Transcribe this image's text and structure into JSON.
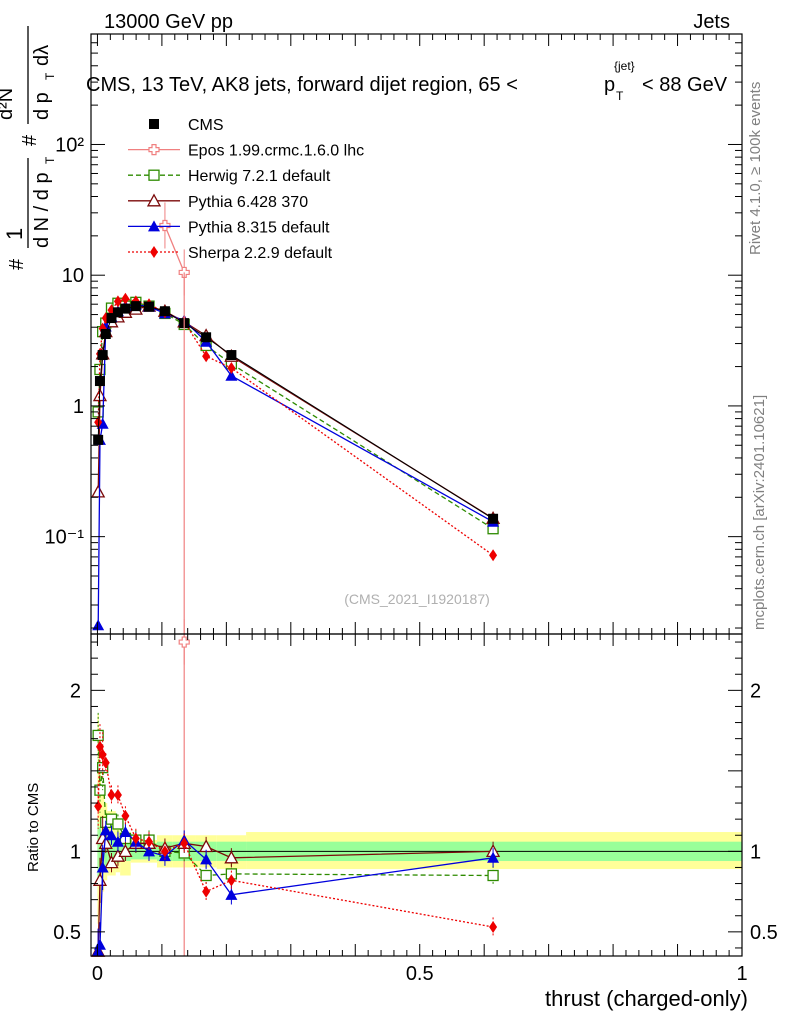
{
  "header": {
    "energy_label": "13000 GeV pp",
    "category": "Jets"
  },
  "side_texts": {
    "rivet": "Rivet 4.1.0, ≥ 100k events",
    "mcplots": "mcplots.cern.ch [arXiv:2401.10621]"
  },
  "colors": {
    "cms": "#000000",
    "epos": "#f08080",
    "herwig": "#2e8b00",
    "pythia6": "#7b0a0a",
    "pythia8": "#0000dd",
    "sherpa": "#ee0000",
    "band_outer": "#ffff99",
    "band_inner": "#99ff99"
  },
  "chart_data": [
    {
      "type": "line",
      "title": "CMS, 13 TeV, AK8 jets, forward dijet region, 65 < p_T^{jet} < 88 GeV",
      "title_main": "CMS, 13 TeV, AK8 jets, forward dijet region, 65 <",
      "title_p": "p",
      "title_sub": "T",
      "title_sup": "{jet}",
      "title_end": "< 88 GeV",
      "ylabel": "1/dN/dpT  d²N/dpT dλ",
      "ylabel_parts": {
        "hash": "#",
        "one": "1",
        "dn_dpt": "d N / d p",
        "t": "T",
        "d2n": "d²N",
        "dpt_dl": "d p",
        "dl": "dλ"
      },
      "yscale": "log",
      "ylim": [
        0.018,
        700
      ],
      "xlim": [
        -0.01,
        1.0
      ],
      "y_ticks": [
        {
          "value": 0.1,
          "label": "10⁻¹"
        },
        {
          "value": 1,
          "label": "1"
        },
        {
          "value": 10,
          "label": "10"
        },
        {
          "value": 100,
          "label": "10²"
        }
      ],
      "watermark": "(CMS_2021_I1920187)",
      "legend_position": "top-left",
      "x": [
        0.0011,
        0.0039,
        0.0081,
        0.0129,
        0.0218,
        0.0318,
        0.0434,
        0.0596,
        0.08,
        0.1047,
        0.1346,
        0.1686,
        0.2078,
        0.6138
      ],
      "series": [
        {
          "name": "CMS",
          "key": "cms",
          "marker": "square-filled",
          "dash": "none",
          "values": [
            0.55,
            1.55,
            2.45,
            3.55,
            4.7,
            5.2,
            5.55,
            5.8,
            5.75,
            5.3,
            4.3,
            3.35,
            2.45,
            0.137
          ]
        },
        {
          "name": "Epos 1.99.crmc.1.6.0 lhc",
          "key": "epos",
          "marker": "cross-open",
          "dash": "none",
          "x": [
            0.1047,
            0.1346
          ],
          "values": [
            24,
            10.5
          ]
        },
        {
          "name": "Herwig 7.2.1 default",
          "key": "herwig",
          "marker": "square-open",
          "dash": "5,3",
          "values": [
            0.9,
            1.9,
            3.7,
            4.3,
            5.6,
            6.1,
            5.8,
            6.2,
            5.8,
            5.1,
            4.2,
            2.9,
            2.1,
            0.115
          ]
        },
        {
          "name": "Pythia 6.428 370",
          "key": "pythia6",
          "marker": "triangle-open",
          "dash": "none",
          "values": [
            0.22,
            1.2,
            2.5,
            3.7,
            4.4,
            4.8,
            5.2,
            5.5,
            5.8,
            5.3,
            4.4,
            3.45,
            2.4,
            0.138
          ]
        },
        {
          "name": "Pythia 8.315 default",
          "key": "pythia8",
          "marker": "triangle-filled",
          "dash": "none",
          "values": [
            0.021,
            0.55,
            0.73,
            4.05,
            4.8,
            5.3,
            5.8,
            5.95,
            5.75,
            5.1,
            4.5,
            3.1,
            1.7,
            0.13
          ]
        },
        {
          "name": "Sherpa 2.2.9 default",
          "key": "sherpa",
          "marker": "diamond-filled",
          "dash": "2,2",
          "values": [
            0.75,
            2.5,
            3.9,
            4.7,
            5.4,
            6.3,
            6.6,
            6.3,
            6.0,
            5.2,
            4.4,
            2.4,
            1.95,
            0.072
          ]
        }
      ],
      "x_edges": [
        0.0,
        0.0022,
        0.0056,
        0.0106,
        0.0152,
        0.0284,
        0.0352,
        0.0516,
        0.0676,
        0.0924,
        0.117,
        0.1522,
        0.185,
        0.2306,
        1.0
      ]
    },
    {
      "type": "line",
      "title": "Ratio to CMS",
      "ylabel": "Ratio to CMS",
      "xlabel": "thrust (charged-only)",
      "ylim": [
        0.35,
        2.35
      ],
      "xlim": [
        -0.01,
        1.0
      ],
      "x_ticks": [
        {
          "value": 0,
          "label": "0"
        },
        {
          "value": 0.5,
          "label": "0.5"
        },
        {
          "value": 1,
          "label": "1"
        }
      ],
      "y_ticks": [
        {
          "value": 0.5,
          "label": "0.5"
        },
        {
          "value": 1,
          "label": "1"
        },
        {
          "value": 2,
          "label": "2"
        }
      ],
      "band_edges": [
        0.0,
        0.0022,
        0.0056,
        0.0106,
        0.0152,
        0.0284,
        0.0352,
        0.0516,
        0.0676,
        0.0924,
        0.117,
        0.1522,
        0.185,
        0.2306,
        1.0
      ],
      "band_outer": [
        [
          0.55,
          1.85
        ],
        [
          0.6,
          1.5
        ],
        [
          0.75,
          1.4
        ],
        [
          0.82,
          1.3
        ],
        [
          0.85,
          1.25
        ],
        [
          0.87,
          1.2
        ],
        [
          0.85,
          1.12
        ],
        [
          0.93,
          1.08
        ],
        [
          0.93,
          1.07
        ],
        [
          0.9,
          1.1
        ],
        [
          0.9,
          1.1
        ],
        [
          0.9,
          1.1
        ],
        [
          0.89,
          1.1
        ],
        [
          0.89,
          1.12
        ]
      ],
      "band_inner": [
        [
          0.82,
          1.2
        ],
        [
          0.85,
          1.15
        ],
        [
          0.9,
          1.12
        ],
        [
          0.9,
          1.1
        ],
        [
          0.92,
          1.09
        ],
        [
          0.93,
          1.08
        ],
        [
          0.94,
          1.07
        ],
        [
          0.95,
          1.05
        ],
        [
          0.95,
          1.05
        ],
        [
          0.94,
          1.06
        ],
        [
          0.94,
          1.06
        ],
        [
          0.94,
          1.06
        ],
        [
          0.94,
          1.06
        ],
        [
          0.94,
          1.06
        ]
      ],
      "x": [
        0.0011,
        0.0039,
        0.0081,
        0.0129,
        0.0218,
        0.0318,
        0.0434,
        0.0596,
        0.08,
        0.1047,
        0.1346,
        0.1686,
        0.2078,
        0.6138
      ],
      "series": [
        {
          "name": "Epos 1.99.crmc.1.6.0 lhc",
          "key": "epos",
          "x": [
            0.1346
          ],
          "values": [
            2.3
          ]
        },
        {
          "name": "Herwig 7.2.1 default",
          "key": "herwig",
          "values": [
            1.72,
            1.38,
            1.52,
            1.18,
            1.2,
            1.17,
            1.08,
            1.07,
            1.07,
            1.0,
            0.99,
            0.85,
            0.86,
            0.85
          ]
        },
        {
          "name": "Pythia 6.428 370",
          "key": "pythia6",
          "values": [
            0.38,
            0.82,
            1.08,
            1.05,
            0.93,
            0.97,
            1.0,
            1.05,
            1.05,
            1.02,
            1.05,
            1.03,
            0.96,
            1.0
          ]
        },
        {
          "name": "Pythia 8.315 default",
          "key": "pythia8",
          "values": [
            0.38,
            0.42,
            0.9,
            1.13,
            1.1,
            1.06,
            1.12,
            1.06,
            1.0,
            0.97,
            1.07,
            0.95,
            0.73,
            0.96
          ]
        },
        {
          "name": "Sherpa 2.2.9 default",
          "key": "sherpa",
          "values": [
            1.28,
            1.65,
            1.6,
            1.55,
            1.35,
            1.35,
            1.22,
            1.08,
            1.06,
            1.0,
            1.05,
            0.75,
            0.82,
            0.53
          ]
        }
      ]
    }
  ]
}
